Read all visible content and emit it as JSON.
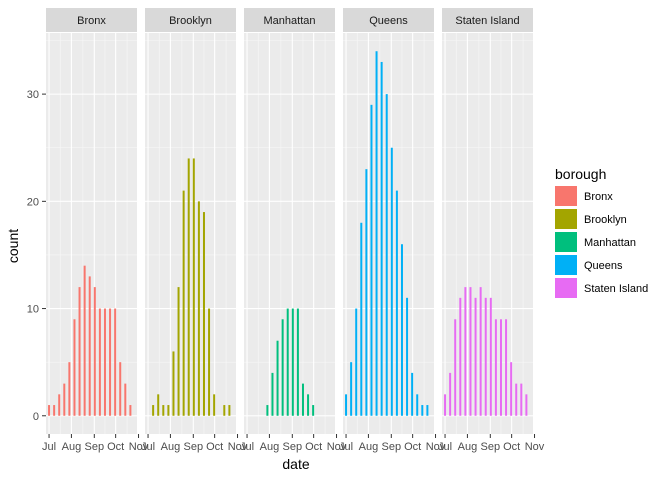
{
  "chart_data": {
    "type": "bar",
    "xlabel": "date",
    "ylabel": "count",
    "y_ticks": [
      0,
      10,
      20,
      30
    ],
    "ylim": [
      -1.7,
      35.7
    ],
    "x_ticks": [
      "Jul",
      "Aug",
      "Sep",
      "Oct",
      "Nov"
    ],
    "xlim": [
      -0.6,
      17.3
    ],
    "grid": true,
    "legend": {
      "title": "borough",
      "position": "right"
    },
    "x_note": "week index; Jul=0, Aug=4.4, Sep=8.9, Oct=13.1, Nov=17.6",
    "facets": [
      {
        "name": "Bronx",
        "color": "#F8766D",
        "x": [
          0,
          1,
          2,
          3,
          4,
          5,
          6,
          7,
          8,
          9,
          10,
          11,
          12,
          13,
          14,
          15,
          16
        ],
        "values": [
          1,
          1,
          2,
          3,
          5,
          9,
          12,
          14,
          13,
          12,
          10,
          10,
          10,
          10,
          5,
          3,
          1
        ]
      },
      {
        "name": "Brooklyn",
        "color": "#A3A500",
        "x": [
          1,
          2,
          3,
          4,
          5,
          6,
          7,
          8,
          9,
          10,
          11,
          12,
          13,
          14,
          15,
          16
        ],
        "values": [
          1,
          2,
          1,
          1,
          6,
          12,
          21,
          24,
          24,
          20,
          19,
          10,
          2,
          0,
          1,
          1
        ]
      },
      {
        "name": "Manhattan",
        "color": "#00BF7D",
        "x": [
          4,
          5,
          6,
          7,
          8,
          9,
          10,
          11,
          12,
          13
        ],
        "values": [
          1,
          4,
          7,
          9,
          10,
          10,
          10,
          3,
          2,
          1
        ]
      },
      {
        "name": "Queens",
        "color": "#00B0F6",
        "x": [
          0,
          1,
          2,
          3,
          4,
          5,
          6,
          7,
          8,
          9,
          10,
          11,
          12,
          13,
          14,
          15,
          16
        ],
        "values": [
          2,
          5,
          10,
          18,
          23,
          29,
          34,
          33,
          30,
          25,
          21,
          16,
          11,
          4,
          2,
          1,
          1
        ]
      },
      {
        "name": "Staten Island",
        "color": "#E76BF3",
        "x": [
          0,
          1,
          2,
          3,
          4,
          5,
          6,
          7,
          8,
          9,
          10,
          11,
          12,
          13,
          14,
          15,
          16
        ],
        "values": [
          2,
          4,
          9,
          11,
          12,
          12,
          11,
          12,
          11,
          11,
          9,
          9,
          9,
          5,
          3,
          3,
          2
        ]
      }
    ]
  }
}
